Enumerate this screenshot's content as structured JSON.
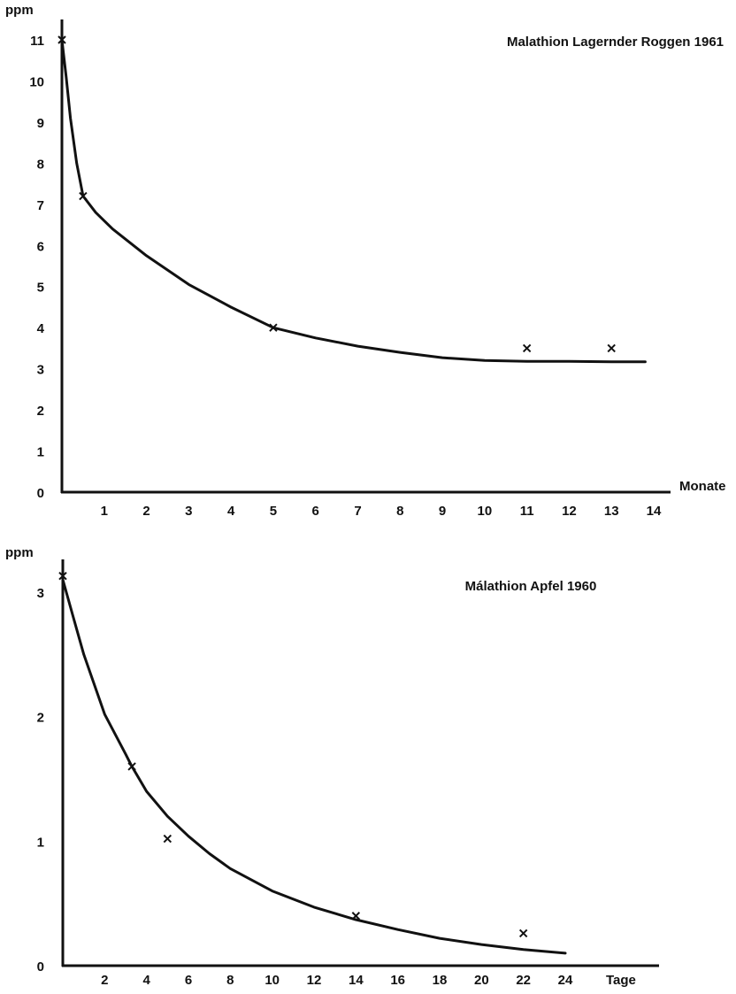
{
  "chart_data": [
    {
      "type": "scatter",
      "title": "Malathion Lagernder Roggen 1961",
      "ylabel": "ppm",
      "xlabel": "Monate",
      "x_ticks": [
        1,
        2,
        3,
        4,
        5,
        6,
        7,
        8,
        9,
        10,
        11,
        12,
        13,
        14
      ],
      "y_ticks": [
        0,
        1,
        2,
        3,
        4,
        5,
        6,
        7,
        8,
        9,
        10,
        11
      ],
      "xlim": [
        0,
        14
      ],
      "ylim": [
        0,
        11
      ],
      "grid": false,
      "points": {
        "x": [
          0,
          0.5,
          5,
          11,
          13
        ],
        "y": [
          11,
          7.2,
          4,
          3.5,
          3.5
        ]
      },
      "fit_curve": {
        "x": [
          0,
          0.1,
          0.2,
          0.35,
          0.5,
          0.8,
          1.2,
          2,
          3,
          4,
          5,
          6,
          7,
          8,
          9,
          10,
          11,
          12,
          13,
          13.8
        ],
        "y": [
          11,
          10.1,
          9.1,
          8.0,
          7.2,
          6.8,
          6.4,
          5.75,
          5.05,
          4.5,
          4.0,
          3.75,
          3.55,
          3.4,
          3.27,
          3.2,
          3.18,
          3.18,
          3.17,
          3.17
        ]
      }
    },
    {
      "type": "scatter",
      "title": "Málathion Apfel 1960",
      "ylabel": "ppm",
      "xlabel": "Tage",
      "x_ticks": [
        "2",
        "4",
        "6",
        "8",
        "10",
        "12",
        "14",
        "16",
        "18",
        "20",
        "22",
        "24"
      ],
      "x_tick_values": [
        2,
        4,
        6,
        8,
        10,
        12,
        14,
        16,
        18,
        20,
        22,
        24
      ],
      "y_ticks": [
        0,
        1,
        2,
        3
      ],
      "xlim": [
        0,
        24
      ],
      "ylim": [
        0,
        3
      ],
      "grid": false,
      "points": {
        "x": [
          0,
          3.3,
          5,
          14,
          22
        ],
        "y": [
          3.13,
          1.6,
          1.02,
          0.4,
          0.26
        ]
      },
      "fit_curve": {
        "x": [
          0,
          0.5,
          1,
          2,
          3,
          3.3,
          4,
          5,
          6,
          7,
          8,
          10,
          12,
          14,
          16,
          18,
          20,
          22,
          24
        ],
        "y": [
          3.1,
          2.8,
          2.5,
          2.02,
          1.7,
          1.6,
          1.4,
          1.2,
          1.04,
          0.9,
          0.78,
          0.6,
          0.47,
          0.37,
          0.29,
          0.22,
          0.17,
          0.13,
          0.1
        ]
      }
    }
  ]
}
